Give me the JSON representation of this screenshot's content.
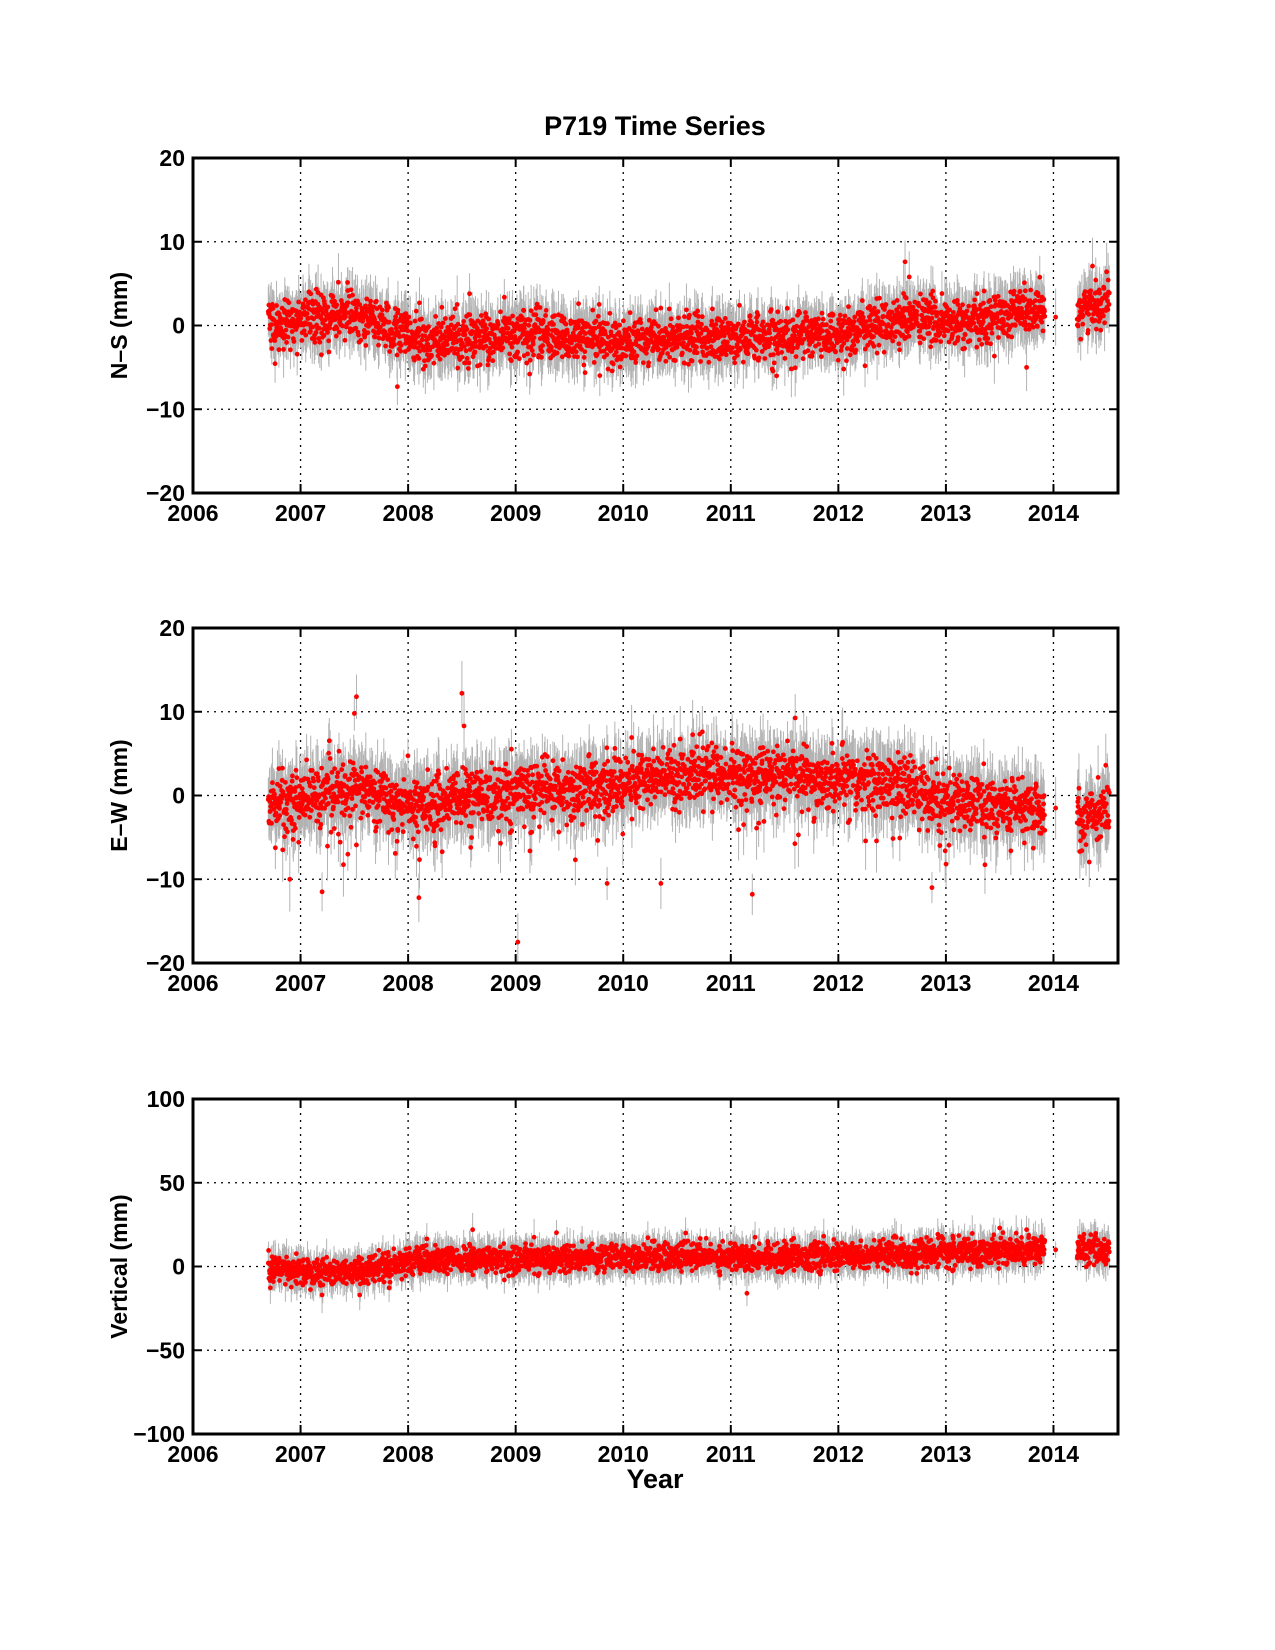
{
  "figure": {
    "title": "P719 Time Series",
    "xlabel": "Year"
  },
  "chart_data": [
    {
      "type": "scatter",
      "title": "P719 Time Series",
      "xlabel": "",
      "ylabel": "N–S (mm)",
      "xlim": [
        2006,
        2014.6
      ],
      "ylim": [
        -20,
        20
      ],
      "xticks": [
        "2006",
        "2007",
        "2008",
        "2009",
        "2010",
        "2011",
        "2012",
        "2013",
        "2014"
      ],
      "yticks": [
        "−20",
        "−10",
        "0",
        "10",
        "20"
      ],
      "grid": true,
      "data_start": 2006.7,
      "data_end": 2014.52,
      "gap": [
        2013.92,
        2014.22
      ],
      "spread": 1.4,
      "err": 2.5,
      "trend": [
        [
          2006.7,
          0
        ],
        [
          2007.5,
          1.5
        ],
        [
          2008.2,
          -2
        ],
        [
          2009.0,
          -1
        ],
        [
          2010.0,
          -2
        ],
        [
          2011.0,
          -1.5
        ],
        [
          2012.0,
          -1
        ],
        [
          2012.7,
          1
        ],
        [
          2013.2,
          0
        ],
        [
          2013.7,
          2
        ],
        [
          2013.92,
          1
        ],
        [
          2014.25,
          2
        ],
        [
          2014.52,
          3
        ]
      ],
      "outliers": [
        [
          2007.9,
          -7.3
        ],
        [
          2012.62,
          7.6
        ],
        [
          2013.75,
          -5
        ],
        [
          2012.05,
          -5.2
        ]
      ],
      "color": "#ff0000",
      "errorbar_color": "#b3b3b3"
    },
    {
      "type": "scatter",
      "title": "",
      "xlabel": "",
      "ylabel": "E–W (mm)",
      "xlim": [
        2006,
        2014.6
      ],
      "ylim": [
        -20,
        20
      ],
      "xticks": [
        "2006",
        "2007",
        "2008",
        "2009",
        "2010",
        "2011",
        "2012",
        "2013",
        "2014"
      ],
      "yticks": [
        "−20",
        "−10",
        "0",
        "10",
        "20"
      ],
      "grid": true,
      "data_start": 2006.7,
      "data_end": 2014.52,
      "gap": [
        2013.92,
        2014.22
      ],
      "spread": 1.6,
      "err": 3,
      "trend": [
        [
          2006.7,
          -1
        ],
        [
          2007.5,
          1
        ],
        [
          2008.0,
          -1
        ],
        [
          2009.0,
          0.5
        ],
        [
          2010.0,
          1.5
        ],
        [
          2010.6,
          2.5
        ],
        [
          2011.5,
          2.5
        ],
        [
          2012.5,
          1.5
        ],
        [
          2013.0,
          -0.5
        ],
        [
          2013.92,
          -1.5
        ],
        [
          2014.25,
          -3
        ],
        [
          2014.52,
          -1
        ]
      ],
      "outliers": [
        [
          2007.52,
          11.8
        ],
        [
          2007.5,
          9.8
        ],
        [
          2008.5,
          12.2
        ],
        [
          2008.52,
          8.3
        ],
        [
          2009.02,
          -17.5
        ],
        [
          2008.1,
          -12.2
        ],
        [
          2007.2,
          -11.5
        ],
        [
          2009.85,
          -10.5
        ],
        [
          2010.35,
          -10.5
        ],
        [
          2012.87,
          -11
        ],
        [
          2011.2,
          -11.8
        ],
        [
          2006.9,
          -10
        ]
      ],
      "negative_tail": 6,
      "color": "#ff0000",
      "errorbar_color": "#b3b3b3"
    },
    {
      "type": "scatter",
      "title": "",
      "xlabel": "Year",
      "ylabel": "Vertical (mm)",
      "xlim": [
        2006,
        2014.6
      ],
      "ylim": [
        -100,
        100
      ],
      "xticks": [
        "2006",
        "2007",
        "2008",
        "2009",
        "2010",
        "2011",
        "2012",
        "2013",
        "2014"
      ],
      "yticks": [
        "−100",
        "−50",
        "0",
        "50",
        "100"
      ],
      "grid": true,
      "data_start": 2006.7,
      "data_end": 2014.52,
      "gap": [
        2013.92,
        2014.22
      ],
      "spread": 4,
      "err": 8,
      "trend": [
        [
          2006.7,
          -2
        ],
        [
          2007.5,
          -3
        ],
        [
          2008.0,
          3
        ],
        [
          2010.0,
          6
        ],
        [
          2012.0,
          6
        ],
        [
          2013.92,
          10
        ],
        [
          2014.52,
          10
        ]
      ],
      "outliers": [
        [
          2008.6,
          22
        ],
        [
          2010.58,
          20
        ],
        [
          2011.15,
          -16
        ],
        [
          2013.5,
          23
        ],
        [
          2013.75,
          22
        ],
        [
          2007.2,
          -17
        ],
        [
          2007.55,
          -17
        ]
      ],
      "color": "#ff0000",
      "errorbar_color": "#b3b3b3"
    }
  ]
}
